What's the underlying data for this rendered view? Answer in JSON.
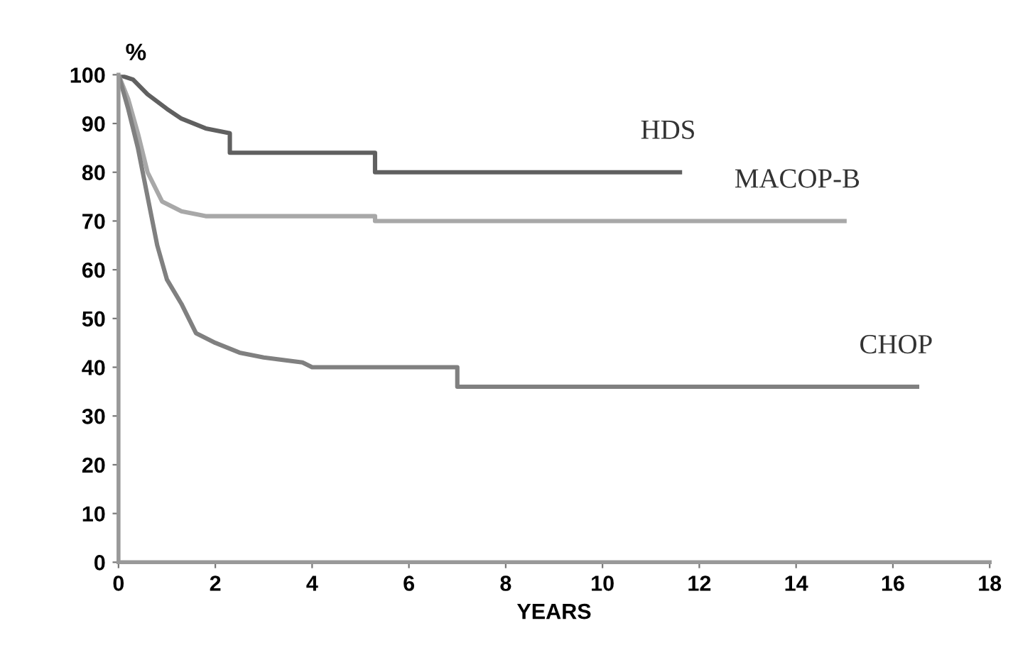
{
  "chart_data": {
    "type": "line",
    "xlabel": "YEARS",
    "ylabel": "%",
    "xlim": [
      0,
      18
    ],
    "ylim": [
      0,
      100
    ],
    "xticks": [
      0,
      2,
      4,
      6,
      8,
      10,
      12,
      14,
      16,
      18
    ],
    "yticks": [
      0,
      10,
      20,
      30,
      40,
      50,
      60,
      70,
      80,
      90,
      100
    ],
    "grid": false,
    "legend": false,
    "marker": "none",
    "line_style": "solid",
    "series": [
      {
        "name": "HDS",
        "color": "#606060",
        "x": [
          0,
          0.3,
          0.6,
          1,
          1.3,
          1.8,
          2.3,
          2.3,
          5.3,
          5.3,
          11.6
        ],
        "values": [
          100,
          99,
          96,
          93,
          91,
          89,
          88,
          84,
          84,
          80,
          80
        ]
      },
      {
        "name": "MACOP-B",
        "color": "#a8a8a8",
        "x": [
          0,
          0.2,
          0.4,
          0.6,
          0.9,
          1.3,
          1.8,
          5.3,
          5.3,
          15
        ],
        "values": [
          100,
          95,
          88,
          80,
          74,
          72,
          71,
          71,
          70,
          70
        ]
      },
      {
        "name": "CHOP",
        "color": "#808080",
        "x": [
          0,
          0.2,
          0.4,
          0.6,
          0.8,
          1,
          1.3,
          1.6,
          2,
          2.5,
          3,
          3.8,
          4,
          7,
          7,
          16.5
        ],
        "values": [
          100,
          93,
          85,
          75,
          65,
          58,
          53,
          47,
          45,
          43,
          42,
          41,
          40,
          40,
          36,
          36
        ]
      }
    ]
  }
}
